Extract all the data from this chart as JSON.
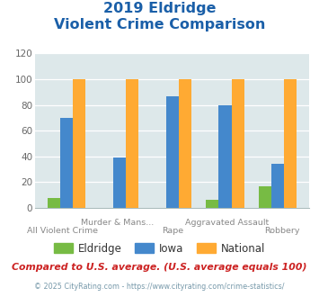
{
  "title_line1": "2019 Eldridge",
  "title_line2": "Violent Crime Comparison",
  "categories": [
    "All Violent Crime",
    "Murder & Mans...",
    "Rape",
    "Aggravated Assault",
    "Robbery"
  ],
  "eldridge": [
    8,
    0,
    0,
    6,
    17
  ],
  "iowa": [
    70,
    39,
    87,
    80,
    34
  ],
  "national": [
    100,
    100,
    100,
    100,
    100
  ],
  "colors": {
    "eldridge": "#77bb44",
    "iowa": "#4488cc",
    "national": "#ffaa33"
  },
  "ylim": [
    0,
    120
  ],
  "yticks": [
    0,
    20,
    40,
    60,
    80,
    100,
    120
  ],
  "bg_color": "#dde8ea",
  "title_color": "#1a5fa8",
  "footnote1": "Compared to U.S. average. (U.S. average equals 100)",
  "footnote2": "© 2025 CityRating.com - https://www.cityrating.com/crime-statistics/",
  "footnote1_color": "#cc2222",
  "footnote2_color": "#7799aa"
}
